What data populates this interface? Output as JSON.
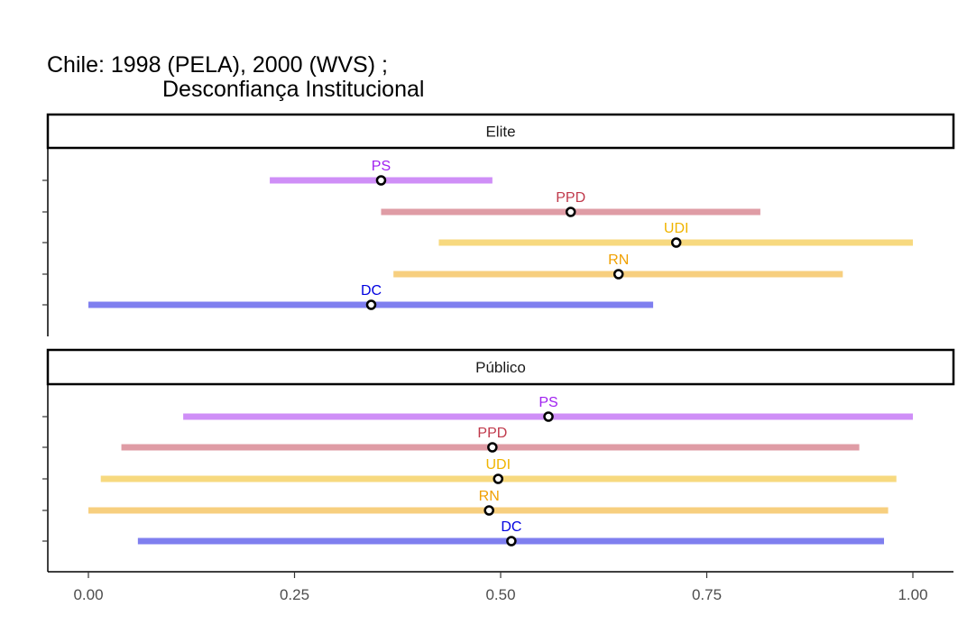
{
  "chart_data": {
    "type": "interval",
    "title_line1": "Chile: 1998 (PELA), 2000 (WVS) ;",
    "title_line2": "Desconfiança Institucional",
    "xlim": [
      -0.05,
      1.05
    ],
    "x_ticks": [
      0.0,
      0.25,
      0.5,
      0.75,
      1.0
    ],
    "x_tick_labels": [
      "0.00",
      "0.25",
      "0.50",
      "0.75",
      "1.00"
    ],
    "panels": [
      {
        "label": "Elite",
        "items": [
          {
            "party": "PS",
            "low": 0.22,
            "high": 0.49,
            "point": 0.355,
            "color": "#A020F0"
          },
          {
            "party": "PPD",
            "low": 0.355,
            "high": 0.815,
            "point": 0.585,
            "color": "#C0394B"
          },
          {
            "party": "UDI",
            "low": 0.425,
            "high": 1.0,
            "point": 0.713,
            "color": "#F0B400"
          },
          {
            "party": "RN",
            "low": 0.37,
            "high": 0.915,
            "point": 0.643,
            "color": "#F0A000"
          },
          {
            "party": "DC",
            "low": 0.0,
            "high": 0.685,
            "point": 0.343,
            "color": "#0000E0"
          }
        ]
      },
      {
        "label": "Público",
        "items": [
          {
            "party": "PS",
            "low": 0.115,
            "high": 1.0,
            "point": 0.558,
            "color": "#A020F0"
          },
          {
            "party": "PPD",
            "low": 0.04,
            "high": 0.935,
            "point": 0.49,
            "color": "#C0394B"
          },
          {
            "party": "UDI",
            "low": 0.015,
            "high": 0.98,
            "point": 0.497,
            "color": "#F0B400"
          },
          {
            "party": "RN",
            "low": 0.0,
            "high": 0.97,
            "point": 0.486,
            "color": "#F0A000"
          },
          {
            "party": "DC",
            "low": 0.06,
            "high": 0.965,
            "point": 0.513,
            "color": "#0000E0"
          }
        ]
      }
    ]
  }
}
